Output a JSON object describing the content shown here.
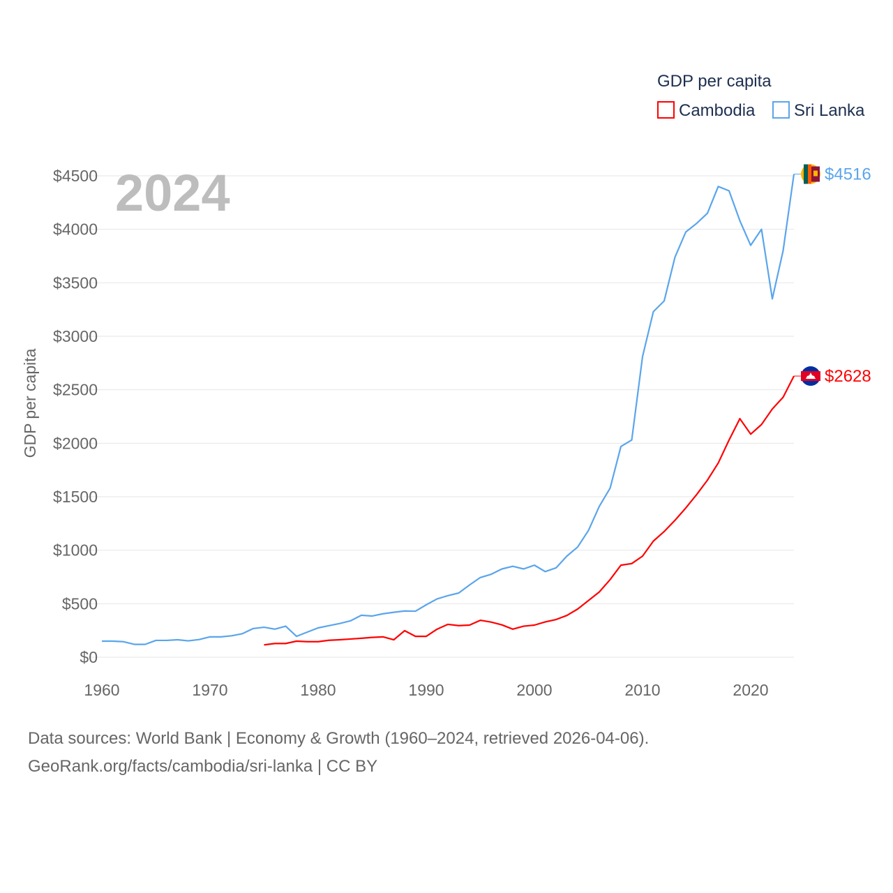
{
  "chart_data": {
    "type": "line",
    "title": "GDP per capita",
    "year_label": "2024",
    "xlabel": "",
    "ylabel": "GDP per capita",
    "xlim": [
      1960,
      2024
    ],
    "ylim": [
      0,
      4500
    ],
    "x_ticks": [
      1960,
      1970,
      1980,
      1990,
      2000,
      2010,
      2020
    ],
    "y_ticks": [
      0,
      500,
      1000,
      1500,
      2000,
      2500,
      3000,
      3500,
      4000,
      4500
    ],
    "y_tick_labels": [
      "$0",
      "$500",
      "$1000",
      "$1500",
      "$2000",
      "$2500",
      "$3000",
      "$3500",
      "$4000",
      "$4500"
    ],
    "grid": true,
    "legend_position": "top-right",
    "series": [
      {
        "name": "Cambodia",
        "color": "#ff0000",
        "end_label": "$2628",
        "start_year": 1975,
        "values": [
          115,
          128,
          128,
          150,
          145,
          145,
          158,
          163,
          170,
          177,
          185,
          190,
          163,
          248,
          195,
          195,
          262,
          307,
          295,
          300,
          345,
          328,
          302,
          262,
          290,
          300,
          330,
          352,
          390,
          450,
          530,
          610,
          725,
          860,
          875,
          945,
          1085,
          1175,
          1280,
          1395,
          1520,
          1655,
          1815,
          2030,
          2230,
          2085,
          2175,
          2320,
          2430,
          2628
        ]
      },
      {
        "name": "Sri Lanka",
        "color": "#5aa5ec",
        "end_label": "$4516",
        "start_year": 1960,
        "values": [
          150,
          150,
          145,
          120,
          120,
          157,
          157,
          163,
          153,
          165,
          190,
          190,
          200,
          220,
          268,
          280,
          262,
          290,
          195,
          235,
          274,
          295,
          315,
          340,
          392,
          385,
          406,
          420,
          432,
          430,
          490,
          545,
          575,
          600,
          675,
          745,
          775,
          825,
          850,
          825,
          860,
          800,
          835,
          945,
          1030,
          1185,
          1410,
          1580,
          1970,
          2030,
          2810,
          3230,
          3330,
          3740,
          3975,
          4055,
          4150,
          4400,
          4360,
          4080,
          3850,
          4000,
          3350,
          3800,
          4516
        ]
      }
    ]
  },
  "footer": {
    "line1": "Data sources: World Bank | Economy & Growth (1960–2024, retrieved 2026-04-06).",
    "line2": "GeoRank.org/facts/cambodia/sri-lanka | CC BY"
  }
}
